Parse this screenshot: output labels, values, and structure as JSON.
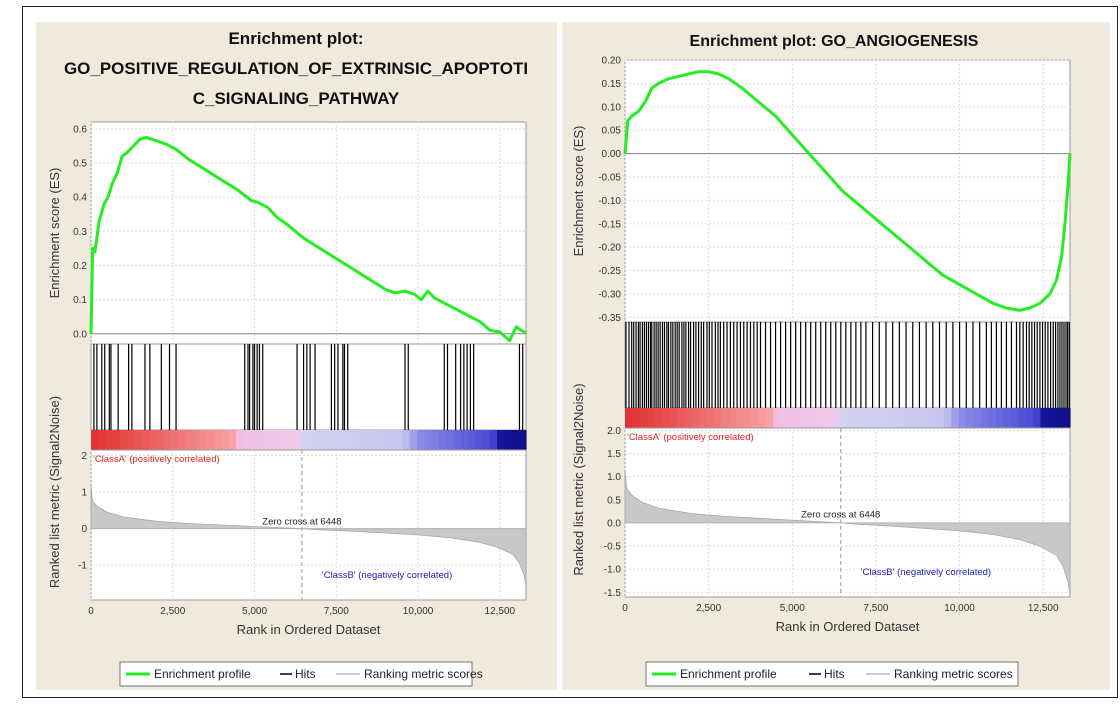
{
  "colors": {
    "panel_bg": "#efeadb",
    "enrichment_line": "#22ee22",
    "hits": "#000000",
    "ranking_fill": "#c8c8c8",
    "class_a_text": "#e02020",
    "class_b_text": "#2020c0"
  },
  "chart_data": [
    {
      "type": "line",
      "title_lines": [
        "Enrichment plot:",
        "GO_POSITIVE_REGULATION_OF_EXTRINSIC_APOPTOTI",
        "C_SIGNALING_PATHWAY"
      ],
      "xlabel": "Rank in Ordered Dataset",
      "ylabel_es": "Enrichment score (ES)",
      "ylabel_metric": "Ranked list metric (Signal2Noise)",
      "xlim": [
        0,
        13300
      ],
      "x_ticks": [
        0,
        2500,
        5000,
        7500,
        10000,
        12500
      ],
      "x_tick_labels": [
        "0",
        "2,500",
        "5,000",
        "7,500",
        "10,000",
        "12,500"
      ],
      "es_ylim": [
        -0.03,
        0.62
      ],
      "es_ticks": [
        0.0,
        0.1,
        0.2,
        0.3,
        0.4,
        0.5,
        0.6
      ],
      "es_tick_labels": [
        "0.0",
        "0.1",
        "0.2",
        "0.3",
        "0.4",
        "0.5",
        "0.6"
      ],
      "metric_ylim": [
        -1.95,
        2.15
      ],
      "metric_ticks": [
        2,
        1,
        0,
        -1
      ],
      "metric_tick_labels": [
        "2",
        "1",
        "0",
        "-1"
      ],
      "series": [
        {
          "name": "Enrichment profile",
          "x": [
            0,
            50,
            120,
            250,
            400,
            520,
            650,
            800,
            950,
            1100,
            1300,
            1500,
            1700,
            2000,
            2300,
            2600,
            3000,
            3500,
            4000,
            4500,
            4900,
            5100,
            5400,
            5700,
            6000,
            6500,
            7000,
            7500,
            8000,
            8500,
            9000,
            9300,
            9600,
            9900,
            10100,
            10300,
            10500,
            10700,
            11000,
            11300,
            11600,
            11900,
            12200,
            12500,
            12800,
            13000,
            13150,
            13300
          ],
          "y": [
            0.0,
            0.25,
            0.24,
            0.33,
            0.38,
            0.4,
            0.44,
            0.47,
            0.52,
            0.53,
            0.55,
            0.57,
            0.575,
            0.565,
            0.555,
            0.54,
            0.51,
            0.48,
            0.45,
            0.42,
            0.39,
            0.385,
            0.37,
            0.34,
            0.32,
            0.28,
            0.25,
            0.22,
            0.19,
            0.16,
            0.13,
            0.12,
            0.125,
            0.115,
            0.1,
            0.125,
            0.105,
            0.095,
            0.08,
            0.065,
            0.05,
            0.035,
            0.01,
            0.005,
            -0.02,
            0.02,
            0.01,
            0.003
          ]
        }
      ],
      "hits": [
        90,
        180,
        330,
        420,
        560,
        610,
        830,
        1150,
        1250,
        1650,
        1800,
        2150,
        2400,
        2600,
        4700,
        4800,
        4850,
        4950,
        5000,
        5080,
        5150,
        5250,
        6300,
        6500,
        6600,
        6700,
        6850,
        7350,
        7450,
        7550,
        7700,
        7750,
        7850,
        9600,
        9700,
        10800,
        10900,
        11150,
        11300,
        11400,
        11500,
        11600,
        11700,
        13100,
        13200
      ],
      "metric": {
        "x": [
          0,
          50,
          200,
          500,
          1000,
          2000,
          3000,
          4000,
          5000,
          6000,
          6448,
          7000,
          8000,
          9000,
          10000,
          11000,
          11800,
          12400,
          12900,
          13100,
          13250,
          13300
        ],
        "y": [
          1.15,
          0.75,
          0.6,
          0.45,
          0.32,
          0.2,
          0.14,
          0.1,
          0.06,
          0.02,
          0.0,
          -0.03,
          -0.07,
          -0.12,
          -0.17,
          -0.25,
          -0.36,
          -0.5,
          -0.7,
          -0.95,
          -1.3,
          -1.55
        ]
      },
      "zero_cross_label": "Zero cross at 6448",
      "zero_cross_x": 6448,
      "class_a_label": "'ClassA' (positively correlated)",
      "class_b_label": "'ClassB' (negatively correlated)",
      "legend": [
        "Enrichment profile",
        "Hits",
        "Ranking metric scores"
      ]
    },
    {
      "type": "line",
      "title_lines": [
        "Enrichment plot: GO_ANGIOGENESIS"
      ],
      "xlabel": "Rank in Ordered Dataset",
      "ylabel_es": "Enrichment score (ES)",
      "ylabel_metric": "Ranked list metric (Signal2Noise)",
      "xlim": [
        0,
        13300
      ],
      "x_ticks": [
        0,
        2500,
        5000,
        7500,
        10000,
        12500
      ],
      "x_tick_labels": [
        "0",
        "2,500",
        "5,000",
        "7,500",
        "10,000",
        "12,500"
      ],
      "es_ylim": [
        -0.36,
        0.2
      ],
      "es_ticks": [
        0.2,
        0.15,
        0.1,
        0.05,
        0.0,
        -0.05,
        -0.1,
        -0.15,
        -0.2,
        -0.25,
        -0.3,
        -0.35
      ],
      "es_tick_labels": [
        "0.20",
        "0.15",
        "0.10",
        "0.05",
        "0.00",
        "-0.05",
        "-0.10",
        "-0.15",
        "-0.20",
        "-0.25",
        "-0.30",
        "-0.35"
      ],
      "metric_ylim": [
        -1.6,
        2.05
      ],
      "metric_ticks": [
        2.0,
        1.5,
        1.0,
        0.5,
        0.0,
        -0.5,
        -1.0,
        -1.5
      ],
      "metric_tick_labels": [
        "2.0",
        "1.5",
        "1.0",
        "0.5",
        "0.0",
        "-0.5",
        "-1.0",
        "-1.5"
      ],
      "series": [
        {
          "name": "Enrichment profile",
          "x": [
            0,
            80,
            200,
            400,
            600,
            800,
            1000,
            1300,
            1600,
            1900,
            2200,
            2500,
            2800,
            3100,
            3500,
            4000,
            4500,
            5000,
            5500,
            6000,
            6500,
            7000,
            7500,
            8000,
            8500,
            9000,
            9500,
            10000,
            10500,
            11000,
            11400,
            11800,
            12100,
            12400,
            12700,
            12900,
            13050,
            13150,
            13250,
            13300
          ],
          "y": [
            0.0,
            0.07,
            0.08,
            0.09,
            0.11,
            0.14,
            0.15,
            0.16,
            0.165,
            0.17,
            0.175,
            0.175,
            0.17,
            0.16,
            0.14,
            0.11,
            0.08,
            0.04,
            0.0,
            -0.04,
            -0.08,
            -0.11,
            -0.14,
            -0.17,
            -0.2,
            -0.23,
            -0.26,
            -0.28,
            -0.3,
            -0.32,
            -0.33,
            -0.335,
            -0.33,
            -0.32,
            -0.3,
            -0.27,
            -0.22,
            -0.15,
            -0.06,
            0.0
          ]
        }
      ],
      "hits": [
        30,
        120,
        200,
        260,
        330,
        400,
        450,
        520,
        580,
        640,
        700,
        760,
        800,
        870,
        930,
        990,
        1050,
        1120,
        1180,
        1250,
        1300,
        1370,
        1430,
        1500,
        1560,
        1620,
        1700,
        1760,
        1820,
        1900,
        1960,
        2050,
        2120,
        2200,
        2280,
        2350,
        2450,
        2520,
        2600,
        2700,
        2780,
        2850,
        2950,
        3050,
        3150,
        3250,
        3350,
        3450,
        3550,
        3650,
        3750,
        3850,
        3950,
        4050,
        4200,
        4350,
        4500,
        4650,
        4800,
        4950,
        5100,
        5250,
        5400,
        5550,
        5700,
        5850,
        6000,
        6150,
        6300,
        6450,
        6600,
        6750,
        6900,
        7050,
        7200,
        7400,
        7600,
        7800,
        8000,
        8200,
        8400,
        8600,
        8800,
        9000,
        9200,
        9400,
        9600,
        9800,
        10000,
        10200,
        10400,
        10600,
        10800,
        10950,
        11100,
        11250,
        11400,
        11550,
        11700,
        11800,
        11900,
        12000,
        12080,
        12160,
        12240,
        12320,
        12400,
        12480,
        12560,
        12640,
        12720,
        12800,
        12870,
        12940,
        13000,
        13060,
        13120,
        13180,
        13230,
        13280
      ],
      "metric": {
        "x": [
          0,
          50,
          200,
          500,
          1000,
          2000,
          3000,
          4000,
          5000,
          6000,
          6448,
          7000,
          8000,
          9000,
          10000,
          11000,
          11800,
          12400,
          12900,
          13100,
          13250,
          13300
        ],
        "y": [
          1.15,
          0.75,
          0.6,
          0.45,
          0.32,
          0.2,
          0.14,
          0.1,
          0.06,
          0.02,
          0.0,
          -0.03,
          -0.07,
          -0.12,
          -0.17,
          -0.25,
          -0.36,
          -0.5,
          -0.7,
          -0.95,
          -1.3,
          -1.55
        ]
      },
      "zero_cross_label": "Zero cross at 6448",
      "zero_cross_x": 6448,
      "class_a_label": "'ClassA' (positively correlated)",
      "class_b_label": "'ClassB' (negatively correlated)",
      "legend": [
        "Enrichment profile",
        "Hits",
        "Ranking metric scores"
      ]
    }
  ]
}
